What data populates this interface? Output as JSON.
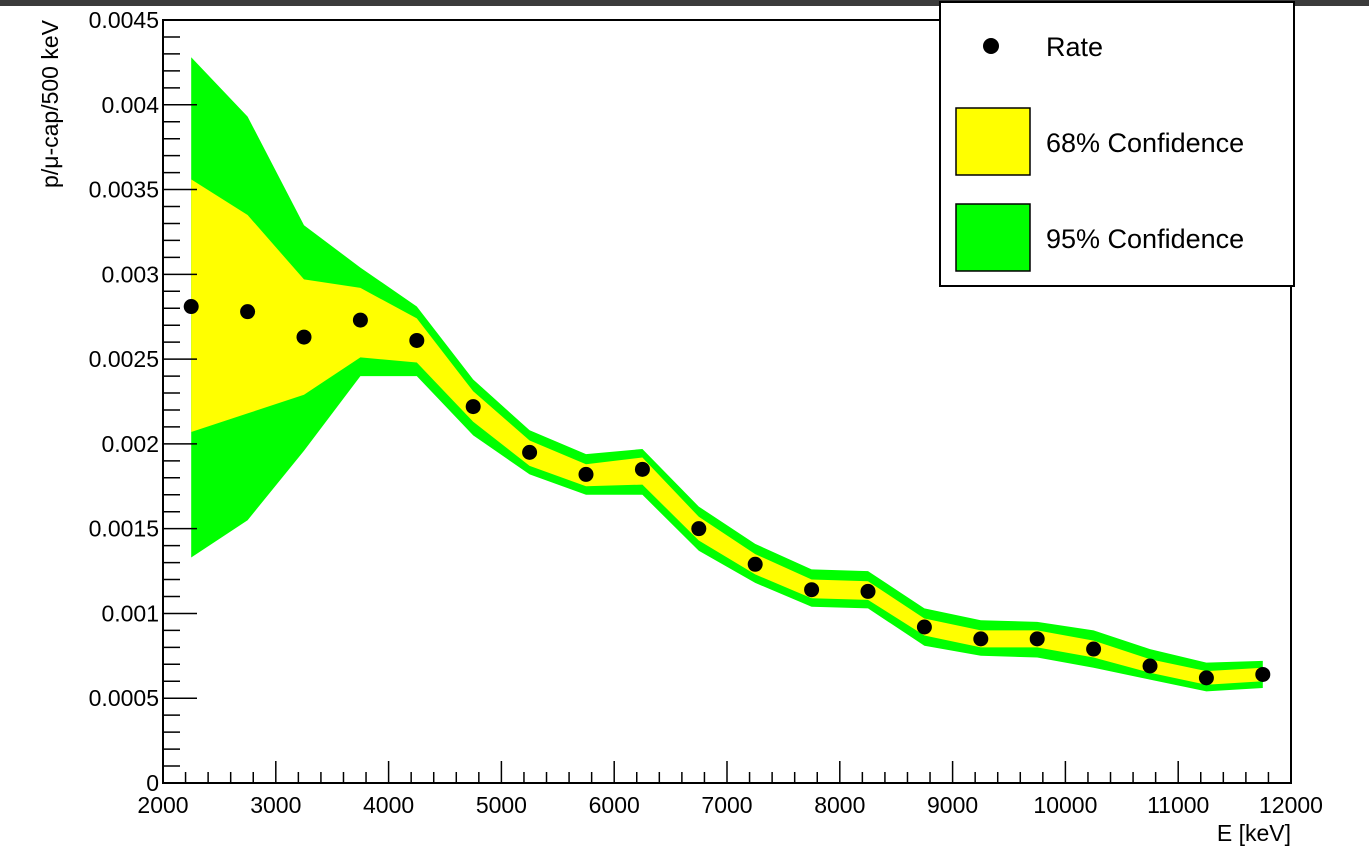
{
  "chart_data": {
    "type": "scatter",
    "xlabel": "E [keV]",
    "ylabel": "p/μ-cap/500 keV",
    "xlim": [
      2000,
      12000
    ],
    "ylim": [
      0,
      0.0045
    ],
    "xticks": [
      "2000",
      "3000",
      "4000",
      "5000",
      "6000",
      "7000",
      "8000",
      "9000",
      "10000",
      "11000",
      "12000"
    ],
    "yticks": [
      "0",
      "0.0005",
      "0.001",
      "0.0015",
      "0.002",
      "0.0025",
      "0.003",
      "0.0035",
      "0.004",
      "0.0045"
    ],
    "grid": false,
    "legend_position": "top-right",
    "legend": {
      "rate_label": "Rate",
      "band68_label": "68% Confidence",
      "band95_label": "95% Confidence"
    },
    "colors": {
      "band68": "#ffff00",
      "band95": "#00ff00",
      "points": "#000000"
    },
    "x": [
      2250,
      2750,
      3250,
      3750,
      4250,
      4750,
      5250,
      5750,
      6250,
      6750,
      7250,
      7750,
      8250,
      8750,
      9250,
      9750,
      10250,
      10750,
      11250,
      11750
    ],
    "series": [
      {
        "name": "Rate",
        "values": [
          0.00281,
          0.00278,
          0.00263,
          0.00273,
          0.00261,
          0.00222,
          0.00195,
          0.00182,
          0.00185,
          0.0015,
          0.00129,
          0.00114,
          0.00113,
          0.00092,
          0.00085,
          0.00085,
          0.00079,
          0.00069,
          0.00062,
          0.00064
        ]
      },
      {
        "name": "68% Confidence",
        "low": [
          0.00207,
          0.00218,
          0.00229,
          0.00251,
          0.00248,
          0.00213,
          0.00187,
          0.00175,
          0.00176,
          0.00143,
          0.00123,
          0.00109,
          0.00108,
          0.00087,
          0.0008,
          0.0008,
          0.00074,
          0.00065,
          0.00058,
          0.0006
        ],
        "high": [
          0.00356,
          0.00335,
          0.00297,
          0.00292,
          0.00274,
          0.00231,
          0.00202,
          0.00188,
          0.00192,
          0.00157,
          0.00135,
          0.0012,
          0.00119,
          0.00097,
          0.0009,
          0.0009,
          0.00084,
          0.00073,
          0.00066,
          0.00068
        ]
      },
      {
        "name": "95% Confidence",
        "low": [
          0.00133,
          0.00155,
          0.00196,
          0.0024,
          0.0024,
          0.00205,
          0.00182,
          0.0017,
          0.0017,
          0.00137,
          0.00118,
          0.00104,
          0.00103,
          0.00081,
          0.00075,
          0.00074,
          0.00068,
          0.00061,
          0.00054,
          0.00056
        ],
        "high": [
          0.00428,
          0.00393,
          0.00329,
          0.00304,
          0.00281,
          0.00238,
          0.00208,
          0.00194,
          0.00197,
          0.00163,
          0.00141,
          0.00126,
          0.00125,
          0.00103,
          0.00096,
          0.00095,
          0.0009,
          0.00079,
          0.00071,
          0.00072
        ]
      }
    ]
  }
}
